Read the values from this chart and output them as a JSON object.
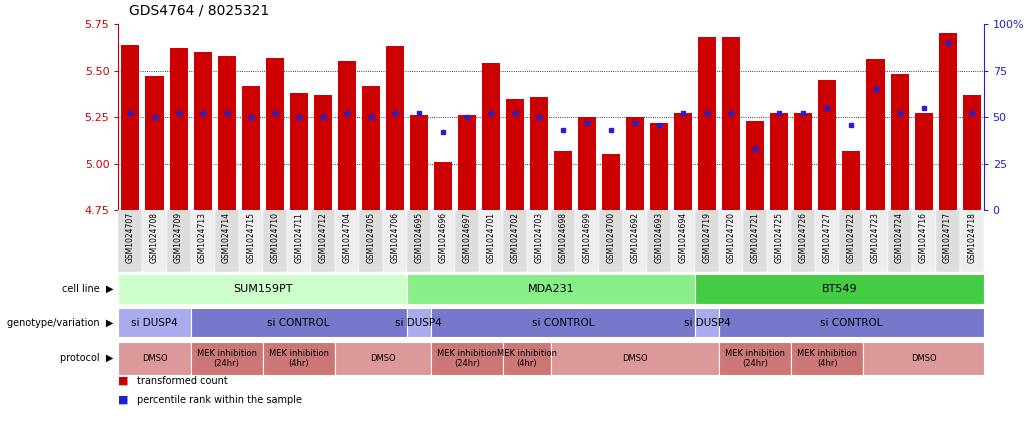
{
  "title": "GDS4764 / 8025321",
  "samples": [
    "GSM1024707",
    "GSM1024708",
    "GSM1024709",
    "GSM1024713",
    "GSM1024714",
    "GSM1024715",
    "GSM1024710",
    "GSM1024711",
    "GSM1024712",
    "GSM1024704",
    "GSM1024705",
    "GSM1024706",
    "GSM1024695",
    "GSM1024696",
    "GSM1024697",
    "GSM1024701",
    "GSM1024702",
    "GSM1024703",
    "GSM1024698",
    "GSM1024699",
    "GSM1024700",
    "GSM1024692",
    "GSM1024693",
    "GSM1024694",
    "GSM1024719",
    "GSM1024720",
    "GSM1024721",
    "GSM1024725",
    "GSM1024726",
    "GSM1024727",
    "GSM1024722",
    "GSM1024723",
    "GSM1024724",
    "GSM1024716",
    "GSM1024717",
    "GSM1024718"
  ],
  "bar_values": [
    5.64,
    5.47,
    5.62,
    5.6,
    5.58,
    5.42,
    5.57,
    5.38,
    5.37,
    5.55,
    5.42,
    5.63,
    5.26,
    5.01,
    5.26,
    5.54,
    5.35,
    5.36,
    5.07,
    5.25,
    5.05,
    5.25,
    5.22,
    5.27,
    5.68,
    5.68,
    5.23,
    5.27,
    5.27,
    5.45,
    5.07,
    5.56,
    5.48,
    5.27,
    5.7,
    5.37
  ],
  "percentile_values": [
    52,
    50,
    52,
    52,
    52,
    50,
    52,
    50,
    50,
    52,
    50,
    52,
    52,
    42,
    50,
    52,
    52,
    50,
    43,
    47,
    43,
    47,
    46,
    52,
    52,
    52,
    33,
    52,
    52,
    55,
    46,
    65,
    52,
    55,
    90,
    52
  ],
  "ylim_left": [
    4.75,
    5.75
  ],
  "ylim_right": [
    0,
    100
  ],
  "yticks_left": [
    4.75,
    5.0,
    5.25,
    5.5,
    5.75
  ],
  "yticks_right": [
    0,
    25,
    50,
    75,
    100
  ],
  "bar_color": "#cc0000",
  "percentile_color": "#2222cc",
  "bar_bottom": 4.75,
  "cell_line_data": [
    {
      "label": "SUM159PT",
      "start": 0,
      "end": 12,
      "color": "#ccffcc"
    },
    {
      "label": "MDA231",
      "start": 12,
      "end": 24,
      "color": "#88ee88"
    },
    {
      "label": "BT549",
      "start": 24,
      "end": 36,
      "color": "#44cc44"
    }
  ],
  "genotype_data": [
    {
      "label": "si DUSP4",
      "start": 0,
      "end": 3,
      "color": "#aaaaee"
    },
    {
      "label": "si CONTROL",
      "start": 3,
      "end": 12,
      "color": "#7777cc"
    },
    {
      "label": "si DUSP4",
      "start": 12,
      "end": 13,
      "color": "#aaaaee"
    },
    {
      "label": "si CONTROL",
      "start": 13,
      "end": 24,
      "color": "#7777cc"
    },
    {
      "label": "si DUSP4",
      "start": 24,
      "end": 25,
      "color": "#aaaaee"
    },
    {
      "label": "si CONTROL",
      "start": 25,
      "end": 36,
      "color": "#7777cc"
    }
  ],
  "protocol_data": [
    {
      "label": "DMSO",
      "start": 0,
      "end": 3,
      "color": "#dd9999"
    },
    {
      "label": "MEK inhibition\n(24hr)",
      "start": 3,
      "end": 6,
      "color": "#cc7777"
    },
    {
      "label": "MEK inhibition\n(4hr)",
      "start": 6,
      "end": 9,
      "color": "#cc7777"
    },
    {
      "label": "DMSO",
      "start": 9,
      "end": 13,
      "color": "#dd9999"
    },
    {
      "label": "MEK inhibition\n(24hr)",
      "start": 13,
      "end": 16,
      "color": "#cc7777"
    },
    {
      "label": "MEK inhibition\n(4hr)",
      "start": 16,
      "end": 18,
      "color": "#cc7777"
    },
    {
      "label": "DMSO",
      "start": 18,
      "end": 25,
      "color": "#dd9999"
    },
    {
      "label": "MEK inhibition\n(24hr)",
      "start": 25,
      "end": 28,
      "color": "#cc7777"
    },
    {
      "label": "MEK inhibition\n(4hr)",
      "start": 28,
      "end": 31,
      "color": "#cc7777"
    },
    {
      "label": "DMSO",
      "start": 31,
      "end": 36,
      "color": "#dd9999"
    }
  ],
  "row_labels": [
    "cell line",
    "genotype/variation",
    "protocol"
  ],
  "legend_items": [
    {
      "label": "transformed count",
      "color": "#cc0000"
    },
    {
      "label": "percentile rank within the sample",
      "color": "#2222cc"
    }
  ]
}
